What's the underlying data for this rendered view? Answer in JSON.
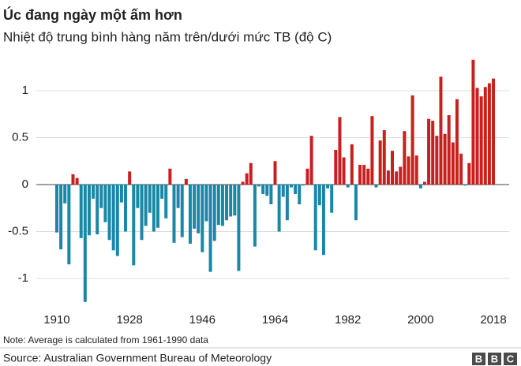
{
  "chart_data": {
    "type": "bar",
    "title": "Úc đang ngày một ấm hơn",
    "subtitle": "Nhiệt độ trung bình hàng năm trên/dưới mức TB (độ C)",
    "note": "Note: Average is calculated from 1961-1990 data",
    "source": "Source: Australian Government Bureau of Meteorology",
    "logo": [
      "B",
      "B",
      "C"
    ],
    "x": [
      1910,
      1911,
      1912,
      1913,
      1914,
      1915,
      1916,
      1917,
      1918,
      1919,
      1920,
      1921,
      1922,
      1923,
      1924,
      1925,
      1926,
      1927,
      1928,
      1929,
      1930,
      1931,
      1932,
      1933,
      1934,
      1935,
      1936,
      1937,
      1938,
      1939,
      1940,
      1941,
      1942,
      1943,
      1944,
      1945,
      1946,
      1947,
      1948,
      1949,
      1950,
      1951,
      1952,
      1953,
      1954,
      1955,
      1956,
      1957,
      1958,
      1959,
      1960,
      1961,
      1962,
      1963,
      1964,
      1965,
      1966,
      1967,
      1968,
      1969,
      1970,
      1971,
      1972,
      1973,
      1974,
      1975,
      1976,
      1977,
      1978,
      1979,
      1980,
      1981,
      1982,
      1983,
      1984,
      1985,
      1986,
      1987,
      1988,
      1989,
      1990,
      1991,
      1992,
      1993,
      1994,
      1995,
      1996,
      1997,
      1998,
      1999,
      2000,
      2001,
      2002,
      2003,
      2004,
      2005,
      2006,
      2007,
      2008,
      2009,
      2010,
      2011,
      2012,
      2013,
      2014,
      2015,
      2016,
      2017,
      2018
    ],
    "values": [
      -0.51,
      -0.69,
      -0.2,
      -0.85,
      0.11,
      0.07,
      -0.57,
      -1.25,
      -0.54,
      -0.15,
      -0.53,
      -0.25,
      -0.4,
      -0.59,
      -0.7,
      -0.76,
      -0.19,
      -0.5,
      0.14,
      -0.86,
      -0.25,
      -0.59,
      -0.44,
      -0.3,
      -0.5,
      -0.46,
      -0.15,
      -0.36,
      0.17,
      -0.62,
      -0.25,
      -0.56,
      0.06,
      -0.63,
      -0.47,
      -0.52,
      -0.72,
      -0.39,
      -0.93,
      -0.6,
      -0.43,
      -0.44,
      -0.38,
      -0.34,
      -0.33,
      -0.92,
      0.03,
      0.12,
      0.23,
      -0.66,
      -0.02,
      -0.1,
      -0.12,
      -0.21,
      0.25,
      -0.5,
      -0.13,
      -0.38,
      -0.03,
      -0.1,
      -0.21,
      -0.01,
      0.17,
      0.52,
      -0.7,
      -0.22,
      -0.75,
      -0.04,
      -0.3,
      0.37,
      0.72,
      0.29,
      -0.03,
      0.43,
      -0.38,
      0.21,
      0.21,
      0.17,
      0.73,
      -0.03,
      0.47,
      0.58,
      0.15,
      0.36,
      0.14,
      0.19,
      0.57,
      0.3,
      0.95,
      0.31,
      -0.04,
      0.03,
      0.7,
      0.68,
      0.52,
      1.15,
      0.54,
      0.74,
      0.45,
      0.91,
      0.33,
      -0.01,
      0.23,
      1.33,
      1.03,
      0.94,
      1.04,
      1.08,
      1.13
    ],
    "positive_color": "#c8201f",
    "negative_color": "#1a87a7",
    "xlim": [
      1908.5,
      2019.5
    ],
    "xticks": [
      1910,
      1928,
      1946,
      1964,
      1982,
      2000,
      2018
    ],
    "ylim": [
      -1.3,
      1.35
    ],
    "yticks": [
      -1,
      -0.5,
      0,
      0.5,
      1
    ],
    "grid": true
  }
}
